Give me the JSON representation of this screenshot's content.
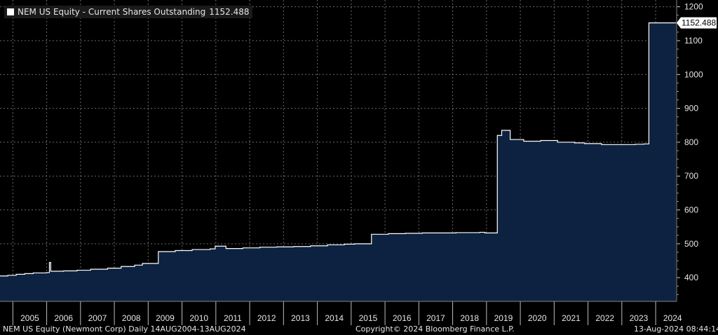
{
  "legend": {
    "swatch_color": "#ffffff",
    "text": "NEM US Equity - Current Shares Outstanding",
    "value": "1152.488"
  },
  "last_value_label": "1152.488",
  "footer": {
    "left": "NEM US Equity (Newmont Corp)  Daily 14AUG2004-13AUG2024",
    "center": "Copyright© 2024 Bloomberg Finance L.P.",
    "right": "13-Aug-2024 08:44:14"
  },
  "colors": {
    "background": "#000000",
    "fill": "#0d2240",
    "line": "#ffffff",
    "grid": "#6a6a6a"
  },
  "chart_data": {
    "type": "area",
    "title": "NEM US Equity - Current Shares Outstanding",
    "xlabel": "",
    "ylabel": "",
    "ylim": [
      330,
      1220
    ],
    "xlim": [
      2004.62,
      2024.62
    ],
    "y_axis_position": "right",
    "y_ticks": [
      400,
      500,
      600,
      700,
      800,
      900,
      1000,
      1100,
      1200
    ],
    "x_ticks": [
      "2005",
      "2006",
      "2007",
      "2008",
      "2009",
      "2010",
      "2011",
      "2012",
      "2013",
      "2014",
      "2015",
      "2016",
      "2017",
      "2018",
      "2019",
      "2020",
      "2021",
      "2022",
      "2023",
      "2024"
    ],
    "grid": true,
    "legend_position": "top-left",
    "series": [
      {
        "name": "NEM US Equity - Current Shares Outstanding",
        "step": true,
        "x": [
          2004.62,
          2004.85,
          2005.1,
          2005.35,
          2005.6,
          2006.0,
          2006.08,
          2006.12,
          2006.5,
          2006.9,
          2007.3,
          2007.8,
          2008.2,
          2008.6,
          2008.83,
          2009.3,
          2009.8,
          2010.3,
          2010.83,
          2010.98,
          2011.3,
          2011.8,
          2012.3,
          2012.8,
          2013.3,
          2013.8,
          2014.3,
          2014.8,
          2015.1,
          2015.6,
          2016.1,
          2016.6,
          2017.1,
          2017.6,
          2018.1,
          2018.6,
          2018.8,
          2018.95,
          2019.32,
          2019.45,
          2019.7,
          2020.1,
          2020.6,
          2021.1,
          2021.6,
          2021.9,
          2022.4,
          2022.9,
          2023.4,
          2023.65,
          2023.8,
          2024.6
        ],
        "y": [
          405,
          407,
          410,
          412,
          414,
          415,
          445,
          419,
          420,
          422,
          425,
          428,
          433,
          437,
          442,
          477,
          480,
          483,
          485,
          493,
          486,
          488,
          490,
          491,
          492,
          494,
          497,
          499,
          500,
          528,
          530,
          531,
          532,
          532,
          533,
          533,
          534,
          532,
          820,
          835,
          808,
          803,
          805,
          800,
          798,
          796,
          793,
          793,
          794,
          795,
          1152.488,
          1152.488
        ]
      }
    ]
  }
}
